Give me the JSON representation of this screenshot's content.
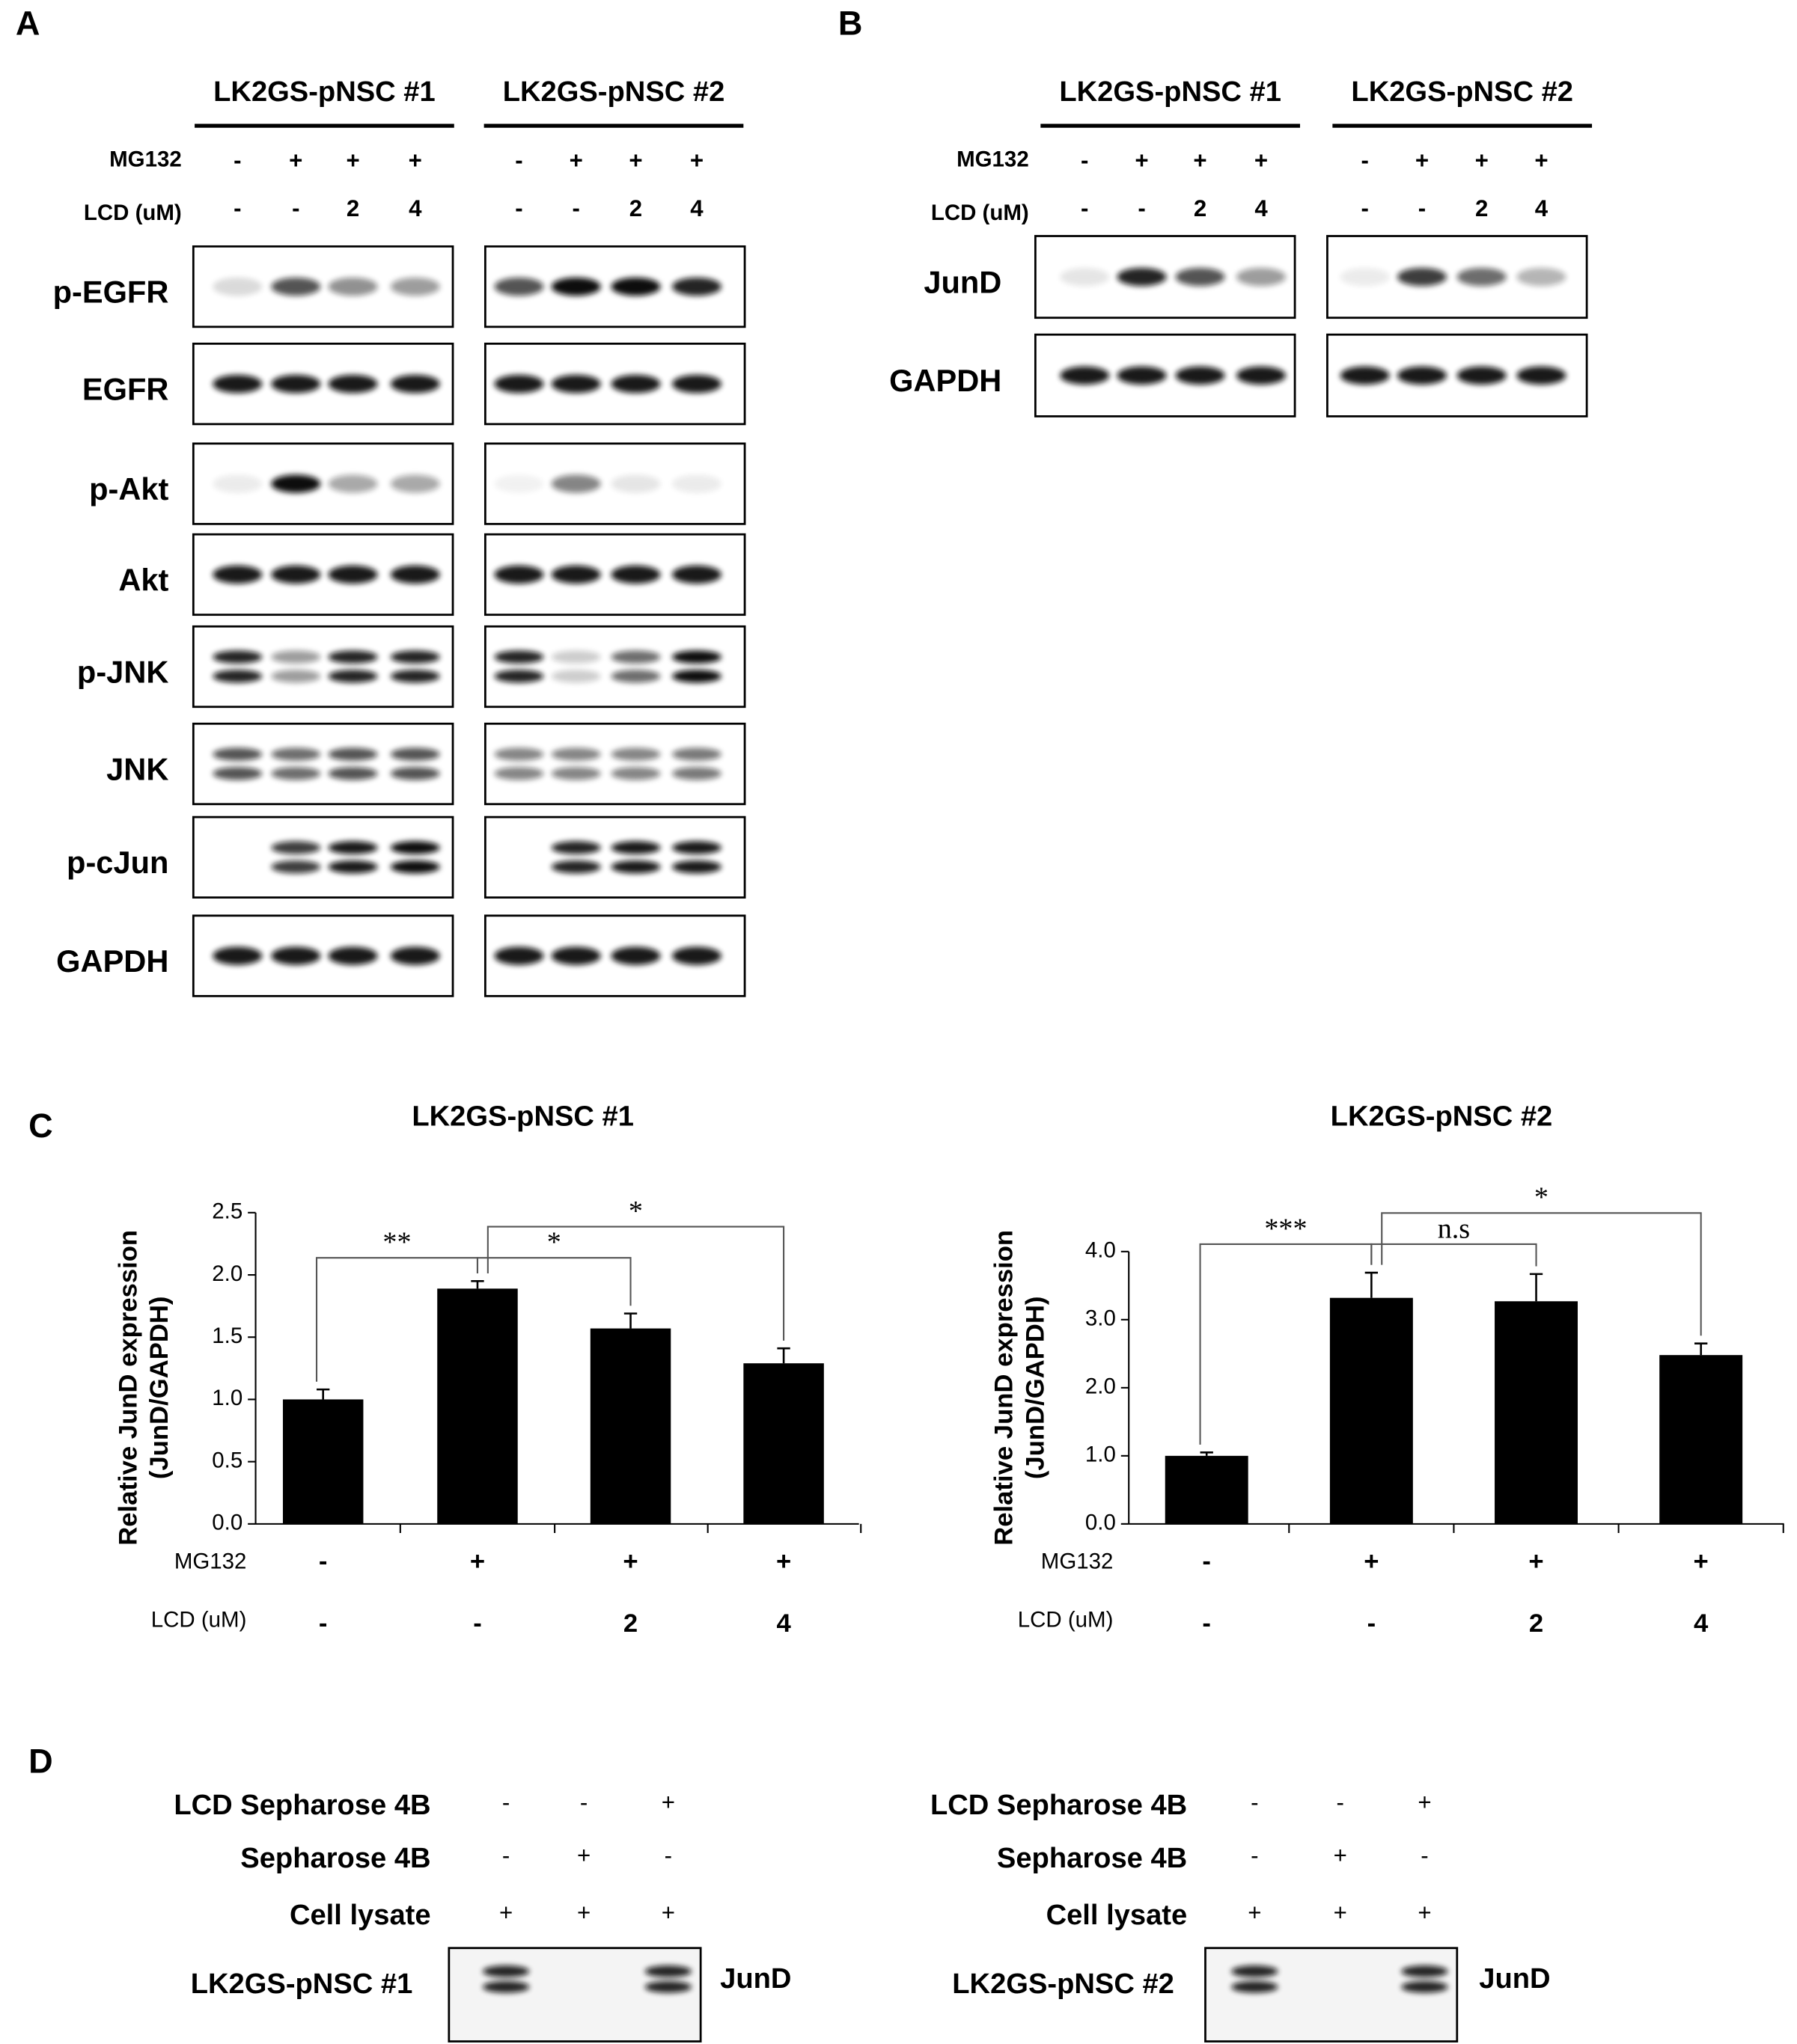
{
  "panel_labels": [
    "A",
    "B",
    "C",
    "D"
  ],
  "blot_a": {
    "groups": [
      "LK2GS-pNSC #1",
      "LK2GS-pNSC #2"
    ],
    "mg132_label": "MG132",
    "lcd_label": "LCD (uM)",
    "mg132": [
      [
        "-",
        "+",
        "+",
        "+"
      ],
      [
        "-",
        "+",
        "+",
        "+"
      ]
    ],
    "lcd": [
      [
        "-",
        "-",
        "2",
        "4"
      ],
      [
        "-",
        "-",
        "2",
        "4"
      ]
    ],
    "proteins": [
      "p-EGFR",
      "EGFR",
      "p-Akt",
      "Akt",
      "p-JNK",
      "JNK",
      "p-cJun",
      "GAPDH"
    ]
  },
  "blot_b": {
    "groups": [
      "LK2GS-pNSC #1",
      "LK2GS-pNSC #2"
    ],
    "mg132_label": "MG132",
    "lcd_label": "LCD (uM)",
    "mg132": [
      [
        "-",
        "+",
        "+",
        "+"
      ],
      [
        "-",
        "+",
        "+",
        "+"
      ]
    ],
    "lcd": [
      [
        "-",
        "-",
        "2",
        "4"
      ],
      [
        "-",
        "-",
        "2",
        "4"
      ]
    ],
    "proteins": [
      "JunD",
      "GAPDH"
    ]
  },
  "chart_data": [
    {
      "type": "bar",
      "title": "LK2GS-pNSC #1",
      "y_label": [
        "Relative JunD expression",
        "(JunD/GAPDH)"
      ],
      "row_labels": [
        "MG132",
        "LCD (uM)"
      ],
      "mg132": [
        "-",
        "+",
        "+",
        "+"
      ],
      "lcd": [
        "-",
        "-",
        "2",
        "4"
      ],
      "values": [
        1.0,
        1.89,
        1.57,
        1.29
      ],
      "errors": [
        0.08,
        0.06,
        0.12,
        0.12
      ],
      "color": "#000000",
      "ylim": [
        0,
        2.5
      ],
      "yticks": [
        {
          "value": 0,
          "label": "0.0"
        },
        {
          "value": 0.5,
          "label": "0.5"
        },
        {
          "value": 1,
          "label": "1.0"
        },
        {
          "value": 1.5,
          "label": "1.5"
        },
        {
          "value": 2,
          "label": "2.0"
        },
        {
          "value": 2.5,
          "label": "2.5"
        }
      ],
      "brackets": [
        {
          "from": 0,
          "to": 1,
          "label": "**"
        },
        {
          "from": 1,
          "to": 2,
          "label": "*"
        },
        {
          "from": 1,
          "to": 3,
          "label": "*"
        }
      ]
    },
    {
      "type": "bar",
      "title": "LK2GS-pNSC #2",
      "y_label": [
        "Relative JunD expression",
        "(JunD/GAPDH)"
      ],
      "row_labels": [
        "MG132",
        "LCD (uM)"
      ],
      "mg132": [
        "-",
        "+",
        "+",
        "+"
      ],
      "lcd": [
        "-",
        "-",
        "2",
        "4"
      ],
      "values": [
        1.0,
        3.32,
        3.27,
        2.48
      ],
      "errors": [
        0.05,
        0.37,
        0.4,
        0.17
      ],
      "color": "#000000",
      "ylim": [
        0,
        4
      ],
      "yticks": [
        {
          "value": 0,
          "label": "0.0"
        },
        {
          "value": 1,
          "label": "1.0"
        },
        {
          "value": 2,
          "label": "2.0"
        },
        {
          "value": 3,
          "label": "3.0"
        },
        {
          "value": 4,
          "label": "4.0"
        }
      ],
      "brackets": [
        {
          "from": 0,
          "to": 1,
          "label": "***"
        },
        {
          "from": 1,
          "to": 2,
          "label": "n.s"
        },
        {
          "from": 1,
          "to": 3,
          "label": "*"
        }
      ]
    }
  ],
  "pulldown": [
    {
      "row_labels": [
        "LCD Sepharose 4B",
        "Sepharose 4B",
        "Cell lysate"
      ],
      "signs": [
        [
          "-",
          "-",
          "+"
        ],
        [
          "-",
          "+",
          "-"
        ],
        [
          "+",
          "+",
          "+"
        ]
      ],
      "sample": "LK2GS-pNSC #1",
      "band_label": "JunD"
    },
    {
      "row_labels": [
        "LCD Sepharose 4B",
        "Sepharose 4B",
        "Cell lysate"
      ],
      "signs": [
        [
          "-",
          "-",
          "+"
        ],
        [
          "-",
          "+",
          "-"
        ],
        [
          "+",
          "+",
          "+"
        ]
      ],
      "sample": "LK2GS-pNSC #2",
      "band_label": "JunD"
    }
  ]
}
